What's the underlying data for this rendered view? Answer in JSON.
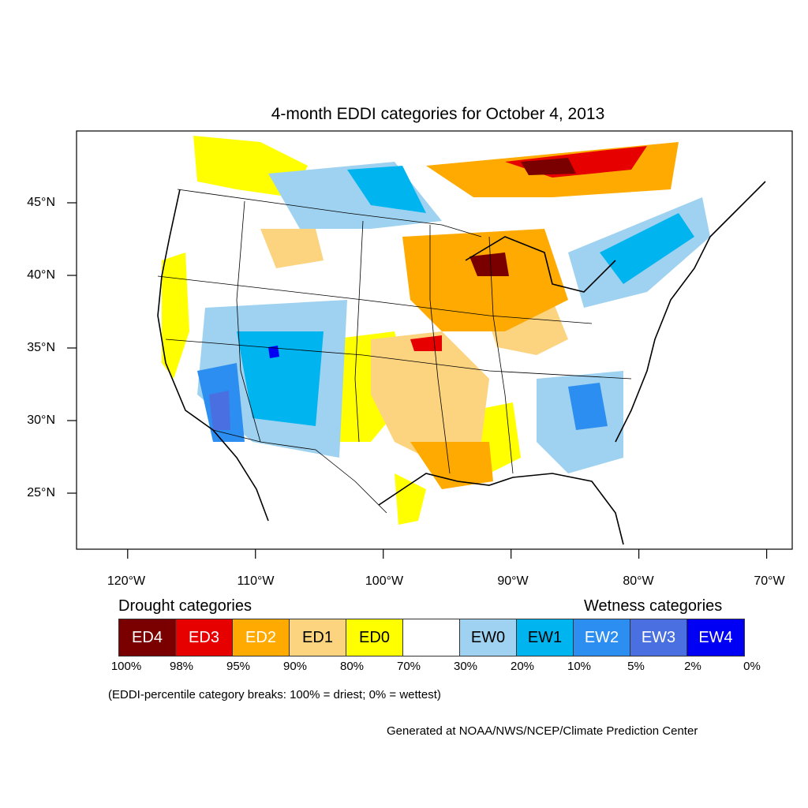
{
  "title": "4-month EDDI categories for October 4, 2013",
  "axes": {
    "lat_labels": [
      "45°N",
      "40°N",
      "35°N",
      "30°N",
      "25°N"
    ],
    "lat_values": [
      45,
      40,
      35,
      30,
      25
    ],
    "lon_labels": [
      "120°W",
      "110°W",
      "100°W",
      "90°W",
      "80°W",
      "70°W"
    ],
    "lon_values": [
      -120,
      -110,
      -100,
      -90,
      -80,
      -70
    ],
    "lat_range": [
      21,
      50
    ],
    "lon_range": [
      -124,
      -68
    ]
  },
  "legend": {
    "drought_heading": "Drought categories",
    "wetness_heading": "Wetness categories",
    "categories": [
      {
        "label": "ED4",
        "color": "#7a0000",
        "text_color": "#ffffff"
      },
      {
        "label": "ED3",
        "color": "#e60000",
        "text_color": "#ffffff"
      },
      {
        "label": "ED2",
        "color": "#ffaa00",
        "text_color": "#ffffff"
      },
      {
        "label": "ED1",
        "color": "#fcd37f",
        "text_color": "#000000"
      },
      {
        "label": "ED0",
        "color": "#ffff00",
        "text_color": "#000000"
      },
      {
        "label": "",
        "color": "#ffffff",
        "text_color": "#000000"
      },
      {
        "label": "EW0",
        "color": "#9fd2f0",
        "text_color": "#000000"
      },
      {
        "label": "EW1",
        "color": "#00b4f0",
        "text_color": "#000000"
      },
      {
        "label": "EW2",
        "color": "#2b8ef0",
        "text_color": "#ffffff"
      },
      {
        "label": "EW3",
        "color": "#4a6fe0",
        "text_color": "#ffffff"
      },
      {
        "label": "EW4",
        "color": "#0000f5",
        "text_color": "#ffffff"
      }
    ],
    "breaks": [
      "100%",
      "98%",
      "95%",
      "90%",
      "80%",
      "70%",
      "30%",
      "20%",
      "10%",
      "5%",
      "2%",
      "0%"
    ]
  },
  "note": "(EDDI-percentile category breaks: 100% = driest; 0% = wettest)",
  "credit": "Generated at NOAA/NWS/NCEP/Climate Prediction Center"
}
